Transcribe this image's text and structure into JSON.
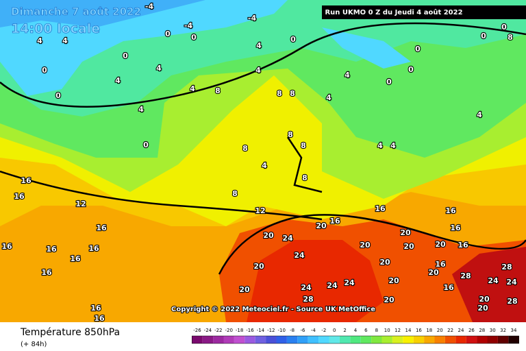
{
  "header": {
    "date": "Dimanche 7 août 2022",
    "time": "14:00 locale",
    "run": "Run UKMO 0 Z du Jeudi 4 août 2022"
  },
  "copyright": "Copyright © 2022 Meteociel.fr - Source UK MetOffice",
  "footer": {
    "title": "Température 850hPa",
    "lead": "(+ 84h)"
  },
  "colorbar": {
    "ticks": [
      -26,
      -24,
      -22,
      -20,
      -18,
      -16,
      -14,
      -12,
      -10,
      -8,
      -6,
      -4,
      -2,
      0,
      2,
      4,
      6,
      8,
      10,
      12,
      14,
      16,
      18,
      20,
      22,
      24,
      26,
      28,
      30,
      32,
      34
    ],
    "colors": [
      "#7a0a6e",
      "#8a1a86",
      "#9c2aa0",
      "#b03cb8",
      "#c050d0",
      "#9a5ae0",
      "#7060e0",
      "#4a50d8",
      "#3060e8",
      "#2a80f0",
      "#30a0f8",
      "#40c0ff",
      "#50d8ff",
      "#60e8e8",
      "#50e8b0",
      "#50e880",
      "#60e860",
      "#80e840",
      "#a8ee30",
      "#d8f020",
      "#f8f000",
      "#f8d000",
      "#f8a800",
      "#f88000",
      "#f05000",
      "#e82800",
      "#d01010",
      "#b00000",
      "#900000",
      "#600000",
      "#200000"
    ]
  },
  "contour_labels": [
    -4,
    -4,
    -4,
    0,
    0,
    4,
    4,
    0,
    4,
    0,
    0,
    4,
    4,
    4,
    0,
    4,
    0,
    4,
    8,
    8,
    8,
    4,
    4,
    0,
    0,
    0,
    0,
    0,
    8,
    4,
    4,
    4,
    8,
    8,
    8,
    4,
    8,
    8,
    16,
    16,
    12,
    16,
    16,
    16,
    16,
    16,
    16,
    12,
    16,
    16,
    20,
    20,
    24,
    24,
    20,
    20,
    24,
    24,
    24,
    28,
    20,
    20,
    20,
    20,
    20,
    20,
    16,
    16,
    20,
    16,
    16,
    20,
    16,
    28,
    24,
    24,
    28,
    20,
    20,
    28,
    16,
    16
  ]
}
